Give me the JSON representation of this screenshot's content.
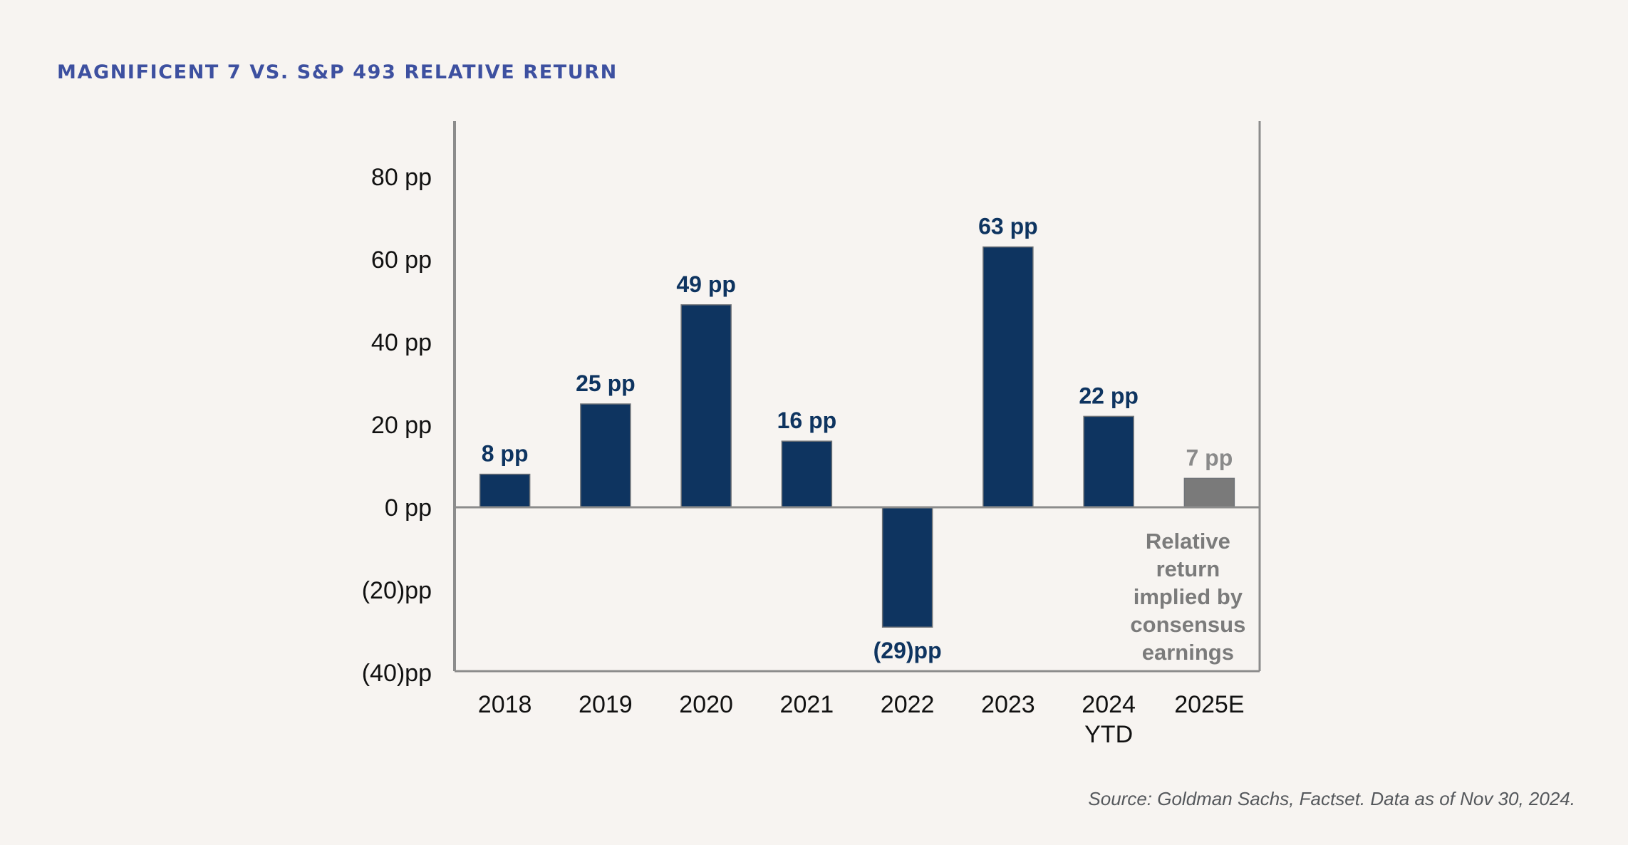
{
  "header": {
    "title": "MAGNIFICENT 7 VS. S&P 493 RELATIVE RETURN"
  },
  "footer": {
    "source": "Source: Goldman Sachs, Factset. Data as of Nov 30, 2024."
  },
  "colors": {
    "background": "#f7f4f1",
    "title": "#3d50a0",
    "bar_actual": "#0e3460",
    "bar_estimate": "#7a7a7a",
    "label_actual": "#0e3460",
    "label_estimate": "#8a8a8a",
    "axis": "#8c8c8c"
  },
  "chart_data": {
    "type": "bar",
    "title": "MAGNIFICENT 7 VS. S&P 493 RELATIVE RETURN",
    "xlabel": "",
    "ylabel": "",
    "unit": "pp",
    "categories": [
      "2018",
      "2019",
      "2020",
      "2021",
      "2022",
      "2023",
      "2024 YTD",
      "2025E"
    ],
    "category_lines": [
      [
        "2018"
      ],
      [
        "2019"
      ],
      [
        "2020"
      ],
      [
        "2021"
      ],
      [
        "2022"
      ],
      [
        "2023"
      ],
      [
        "2024",
        "YTD"
      ],
      [
        "2025E"
      ]
    ],
    "values": [
      8,
      25,
      49,
      16,
      -29,
      63,
      22,
      7
    ],
    "data_labels": [
      "8 pp",
      "25 pp",
      "49 pp",
      "16 pp",
      "(29)pp",
      "63 pp",
      "22 pp",
      "7 pp"
    ],
    "estimate_flags": [
      false,
      false,
      false,
      false,
      false,
      false,
      false,
      true
    ],
    "ylim": [
      -40,
      80
    ],
    "yticks": [
      80,
      60,
      40,
      20,
      0,
      -20,
      -40
    ],
    "ytick_labels": [
      "80 pp",
      "60 pp",
      "40 pp",
      "20 pp",
      "0 pp",
      "(20)pp",
      "(40)pp"
    ],
    "grid": false,
    "legend": "none",
    "annotation": {
      "category": "2025E",
      "lines": [
        "Relative",
        "return",
        "implied by",
        "consensus",
        "earnings"
      ]
    }
  }
}
